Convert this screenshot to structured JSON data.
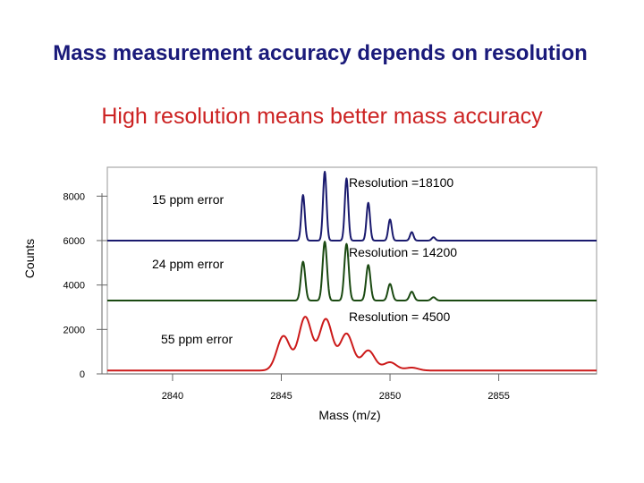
{
  "slide": {
    "title": "Mass measurement accuracy depends on resolution",
    "subtitle": "High resolution means better mass accuracy"
  },
  "colors": {
    "title": "#1a1a7a",
    "subtitle": "#cc2222",
    "plot_border": "#a8a8a8"
  },
  "chart_data": {
    "type": "line",
    "title": "",
    "xlabel": "Mass (m/z)",
    "ylabel": "Counts",
    "xlim": [
      2837,
      2859.5
    ],
    "ylim": [
      0,
      9300
    ],
    "x_ticks": [
      2840,
      2845,
      2850,
      2855
    ],
    "y_ticks": [
      0,
      2000,
      4000,
      6000,
      8000
    ],
    "grid": false,
    "series": [
      {
        "name": "Resolution =18100",
        "label": "Resolution =18100",
        "error_label": "15 ppm error",
        "color": "#1a1a6e",
        "baseline": 6000,
        "peak_width": 0.08,
        "peaks": [
          {
            "x": 2846.0,
            "y": 8050
          },
          {
            "x": 2847.0,
            "y": 9100
          },
          {
            "x": 2848.0,
            "y": 8800
          },
          {
            "x": 2849.0,
            "y": 7700
          },
          {
            "x": 2850.0,
            "y": 6950
          },
          {
            "x": 2851.0,
            "y": 6380
          },
          {
            "x": 2852.0,
            "y": 6150
          }
        ]
      },
      {
        "name": "Resolution = 14200",
        "label": "Resolution = 14200",
        "error_label": "24 ppm error",
        "color": "#1b4a12",
        "baseline": 3300,
        "peak_width": 0.1,
        "peaks": [
          {
            "x": 2846.0,
            "y": 5050
          },
          {
            "x": 2847.0,
            "y": 5950
          },
          {
            "x": 2848.0,
            "y": 5850
          },
          {
            "x": 2849.0,
            "y": 4900
          },
          {
            "x": 2850.0,
            "y": 4050
          },
          {
            "x": 2851.0,
            "y": 3700
          },
          {
            "x": 2852.0,
            "y": 3450
          }
        ]
      },
      {
        "name": "Resolution = 4500",
        "label": "Resolution = 4500",
        "error_label": "55 ppm error",
        "color": "#cc1a1a",
        "baseline": 150,
        "peak_width": 0.3,
        "peaks": [
          {
            "x": 2845.1,
            "y": 1700
          },
          {
            "x": 2846.1,
            "y": 2550
          },
          {
            "x": 2847.05,
            "y": 2450
          },
          {
            "x": 2848.0,
            "y": 1800
          },
          {
            "x": 2849.0,
            "y": 1050
          },
          {
            "x": 2850.0,
            "y": 520
          },
          {
            "x": 2851.0,
            "y": 280
          }
        ]
      }
    ]
  }
}
